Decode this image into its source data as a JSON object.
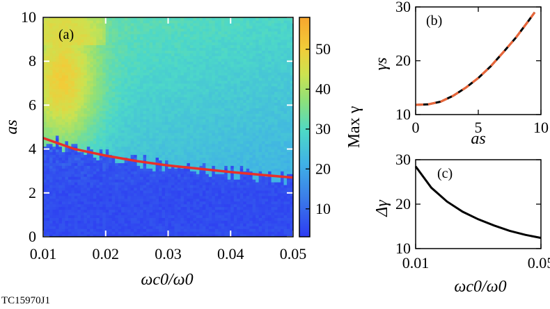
{
  "caption": "TC15970J1",
  "colors": {
    "curve_red": "#e8302a",
    "dash_orange": "#e8663a",
    "black": "#000000"
  },
  "chart_data": [
    {
      "panel": "(a)",
      "type": "heatmap",
      "xlabel": "ωc0/ω0",
      "ylabel": "as",
      "x_ticks": [
        "0.01",
        "0.02",
        "0.03",
        "0.04",
        "0.05"
      ],
      "y_ticks": [
        "0",
        "2",
        "4",
        "6",
        "8",
        "10"
      ],
      "xlim": [
        0.01,
        0.05
      ],
      "ylim": [
        0,
        10
      ],
      "colorbar": {
        "label": "Max γ",
        "ticks": [
          "10",
          "20",
          "30",
          "40",
          "50"
        ],
        "range": [
          3,
          58
        ]
      },
      "boundary_curve": {
        "x": [
          0.01,
          0.015,
          0.02,
          0.025,
          0.03,
          0.035,
          0.04,
          0.045,
          0.05
        ],
        "y": [
          4.5,
          4.0,
          3.7,
          3.45,
          3.25,
          3.1,
          2.95,
          2.82,
          2.7
        ]
      },
      "field_summary": "Low Max γ (~3–8) below the red curve; above it values rise to ~55 near ωc0/ω0≈0.01–0.015, as≈6–9, and ~30–40 elsewhere"
    },
    {
      "panel": "(b)",
      "type": "line",
      "xlabel": "as",
      "ylabel": "γs",
      "x_ticks": [
        "0",
        "5",
        "10"
      ],
      "y_ticks": [
        "10",
        "20",
        "30"
      ],
      "xlim": [
        0,
        10
      ],
      "ylim": [
        10,
        30
      ],
      "series": [
        {
          "style": "solid-black",
          "x": [
            0,
            1,
            2,
            3,
            4,
            5,
            6,
            7,
            8,
            9,
            9.5
          ],
          "y": [
            11.8,
            11.9,
            12.4,
            13.5,
            15.0,
            16.8,
            19.0,
            21.6,
            24.3,
            27.4,
            29.0
          ]
        },
        {
          "style": "dashed-orange",
          "x": [
            0,
            1,
            2,
            3,
            4,
            5,
            6,
            7,
            8,
            9,
            9.5
          ],
          "y": [
            11.8,
            11.9,
            12.4,
            13.5,
            15.0,
            16.8,
            19.0,
            21.6,
            24.3,
            27.4,
            29.0
          ]
        }
      ]
    },
    {
      "panel": "(c)",
      "type": "line",
      "xlabel": "ωc0/ω0",
      "ylabel": "Δγ",
      "x_ticks": [
        "0.01",
        "0.05"
      ],
      "y_ticks": [
        "10",
        "20",
        "30"
      ],
      "xlim": [
        0.01,
        0.05
      ],
      "ylim": [
        10,
        30
      ],
      "series": [
        {
          "style": "solid-black",
          "x": [
            0.01,
            0.015,
            0.02,
            0.025,
            0.03,
            0.035,
            0.04,
            0.045,
            0.05
          ],
          "y": [
            28.5,
            23.7,
            20.6,
            18.3,
            16.6,
            15.2,
            14.0,
            13.1,
            12.4
          ]
        }
      ]
    }
  ]
}
